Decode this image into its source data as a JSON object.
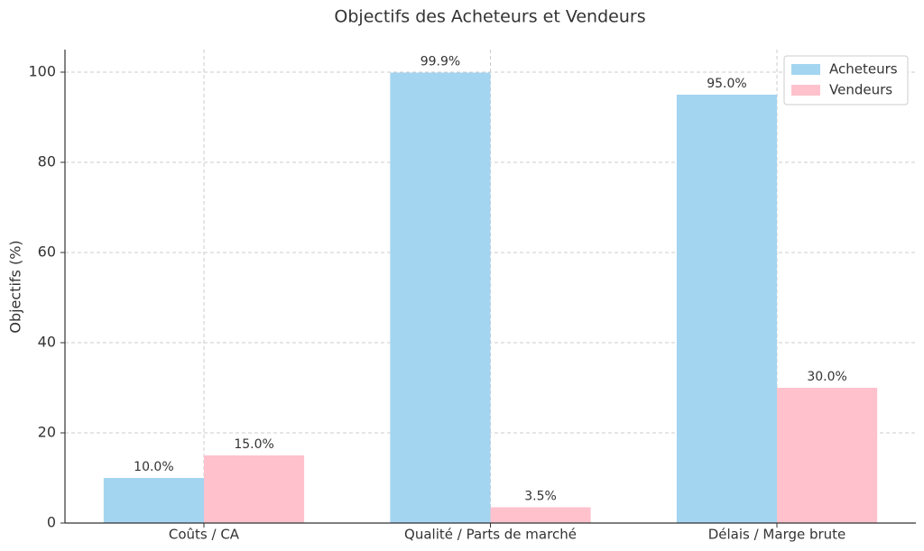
{
  "chart_data": {
    "type": "bar",
    "title": "Objectifs des Acheteurs et Vendeurs",
    "y_label": "Objectifs (%)",
    "categories": [
      "Coûts / CA",
      "Qualité / Parts de marché",
      "Délais / Marge brute"
    ],
    "series": [
      {
        "name": "Acheteurs",
        "color": "#a3d5f0",
        "values": [
          10.0,
          99.9,
          95.0
        ],
        "value_labels": [
          "10.0%",
          "99.9%",
          "95.0%"
        ]
      },
      {
        "name": "Vendeurs",
        "color": "#ffc1cc",
        "values": [
          15.0,
          3.5,
          30.0
        ],
        "value_labels": [
          "15.0%",
          "3.5%",
          "30.0%"
        ]
      }
    ],
    "ylim": [
      0,
      105
    ],
    "yticks": [
      0,
      20,
      40,
      60,
      80,
      100
    ],
    "grid": true,
    "legend": "upper right"
  }
}
